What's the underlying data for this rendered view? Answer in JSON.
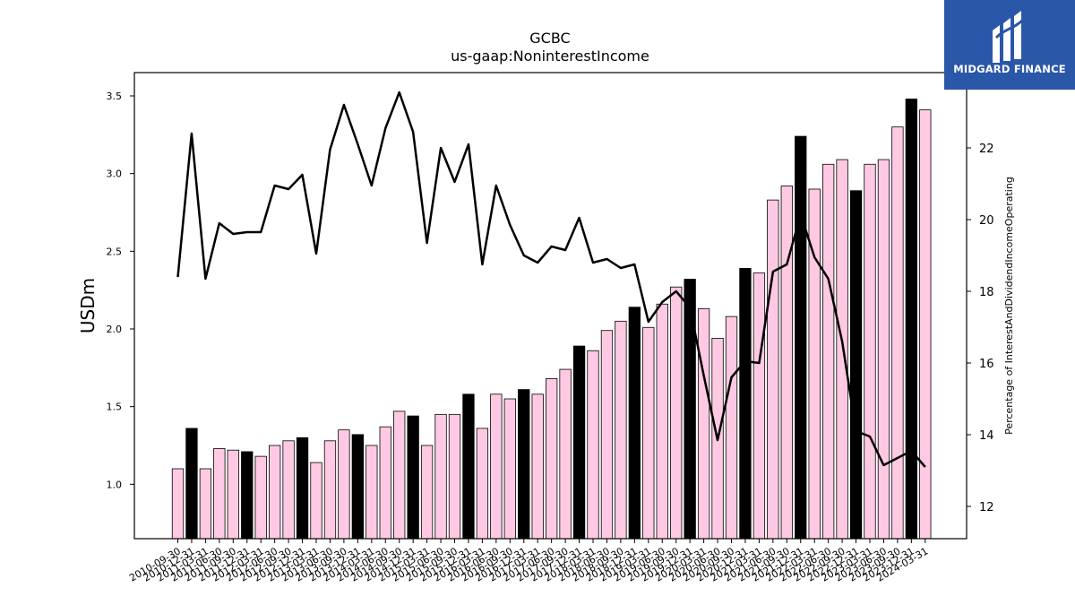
{
  "logo": {
    "brand": "MIDGARD FINANCE",
    "icon": "midgard-logo-icon",
    "color": "#2a57a8"
  },
  "chart_data": {
    "type": "bar",
    "title": "GCBC",
    "subtitle": "us-gaap:NoninterestIncome",
    "ylabel": "USDm",
    "y2label": "Percentage of InterestAndDividendIncomeOperating",
    "ylim": [
      0.65,
      3.65
    ],
    "y2lim": [
      11.1,
      24.1
    ],
    "yticks": [
      "1.0",
      "1.5",
      "2.0",
      "2.5",
      "3.0",
      "3.5"
    ],
    "y2ticks": [
      "12",
      "14",
      "16",
      "18",
      "20",
      "22"
    ],
    "colors": {
      "bar": "#ffc9e3",
      "bar_highlight": "#000000",
      "line": "#000000"
    },
    "categories": [
      "2010-09-30",
      "2010-12-31",
      "2011-03-31",
      "2011-06-30",
      "2011-09-30",
      "2011-12-31",
      "2012-03-31",
      "2012-06-30",
      "2012-09-30",
      "2012-12-31",
      "2013-03-31",
      "2013-06-30",
      "2013-09-30",
      "2013-12-31",
      "2014-03-31",
      "2014-06-30",
      "2014-09-30",
      "2014-12-31",
      "2015-03-31",
      "2015-06-30",
      "2015-09-30",
      "2015-12-31",
      "2016-03-31",
      "2016-06-30",
      "2016-09-30",
      "2016-12-31",
      "2017-03-31",
      "2017-06-30",
      "2017-09-30",
      "2017-12-31",
      "2018-03-31",
      "2018-06-30",
      "2018-09-30",
      "2018-12-31",
      "2019-03-31",
      "2019-06-30",
      "2019-09-30",
      "2019-12-31",
      "2020-03-31",
      "2020-06-30",
      "2020-09-30",
      "2020-12-31",
      "2021-03-31",
      "2021-06-30",
      "2021-09-30",
      "2021-12-31",
      "2022-03-31",
      "2022-06-30",
      "2022-09-30",
      "2022-12-31",
      "2023-03-31",
      "2023-06-30",
      "2023-09-30",
      "2023-12-31",
      "2024-03-31"
    ],
    "series": [
      {
        "type": "bar",
        "values": [
          1.1,
          1.36,
          1.1,
          1.23,
          1.22,
          1.21,
          1.18,
          1.25,
          1.28,
          1.3,
          1.14,
          1.28,
          1.35,
          1.32,
          1.25,
          1.37,
          1.47,
          1.44,
          1.25,
          1.45,
          1.45,
          1.58,
          1.36,
          1.58,
          1.55,
          1.61,
          1.58,
          1.68,
          1.74,
          1.89,
          1.86,
          1.99,
          2.05,
          2.14,
          2.01,
          2.16,
          2.27,
          2.32,
          2.13,
          1.94,
          2.08,
          2.39,
          2.36,
          2.83,
          2.92,
          3.24,
          2.9,
          3.06,
          3.09,
          2.89,
          3.06,
          3.09,
          3.3,
          3.48,
          3.41
        ],
        "highlight": [
          false,
          true,
          false,
          false,
          false,
          true,
          false,
          false,
          false,
          true,
          false,
          false,
          false,
          true,
          false,
          false,
          false,
          true,
          false,
          false,
          false,
          true,
          false,
          false,
          false,
          true,
          false,
          false,
          false,
          true,
          false,
          false,
          false,
          true,
          false,
          false,
          false,
          true,
          false,
          false,
          false,
          true,
          false,
          false,
          false,
          true,
          false,
          false,
          false,
          true,
          false,
          false,
          false,
          true,
          false
        ]
      },
      {
        "type": "line",
        "values": [
          18.4,
          22.4,
          18.35,
          19.9,
          19.6,
          19.65,
          19.65,
          20.95,
          20.85,
          21.25,
          19.05,
          21.95,
          23.2,
          22.1,
          20.95,
          22.55,
          23.55,
          22.45,
          19.35,
          22.0,
          21.05,
          22.1,
          18.75,
          20.95,
          19.85,
          19.0,
          18.8,
          19.25,
          19.15,
          20.05,
          18.8,
          18.9,
          18.65,
          18.75,
          17.15,
          17.7,
          18.0,
          17.55,
          15.65,
          13.85,
          15.6,
          16.05,
          16.0,
          18.55,
          18.75,
          20.15,
          18.95,
          18.35,
          16.6,
          14.1,
          13.95,
          13.15,
          13.35,
          13.55,
          13.1
        ]
      }
    ]
  }
}
